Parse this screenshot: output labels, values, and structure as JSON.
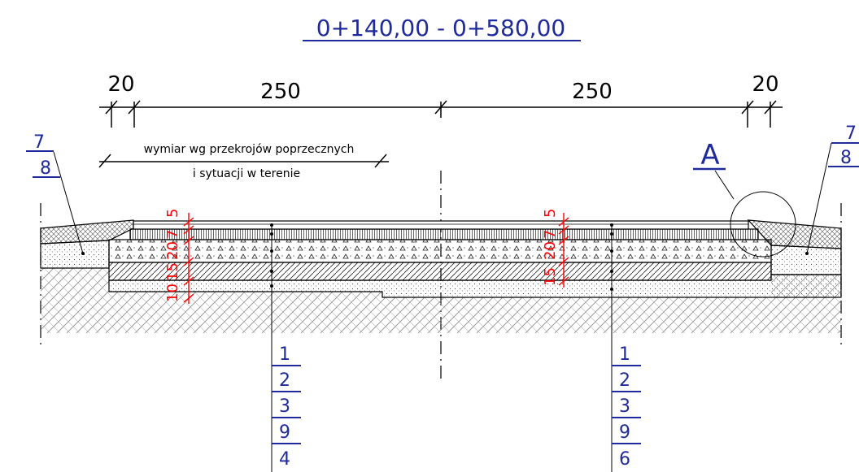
{
  "title": "0+140,00 - 0+580,00",
  "dimensions": {
    "left_shoulder": "20",
    "left_lane": "250",
    "right_lane": "250",
    "right_shoulder": "20"
  },
  "note": {
    "line1": "wymiar wg przekrojów poprzecznych",
    "line2": "i sytuacji w terenie"
  },
  "detail_label": "A",
  "left_layer_dims": [
    "5",
    "7",
    "20",
    "15",
    "10"
  ],
  "right_layer_dims": [
    "5",
    "7",
    "20",
    "15"
  ],
  "left_shoulder_callout": [
    "7",
    "8"
  ],
  "right_shoulder_callout": [
    "7",
    "8"
  ],
  "left_layer_callout": [
    "1",
    "2",
    "3",
    "9",
    "4"
  ],
  "right_layer_callout": [
    "1",
    "2",
    "3",
    "9",
    "6"
  ],
  "colors": {
    "callout": "#1f2a9c",
    "dimension_red": "#ff0000",
    "line": "#000000"
  }
}
